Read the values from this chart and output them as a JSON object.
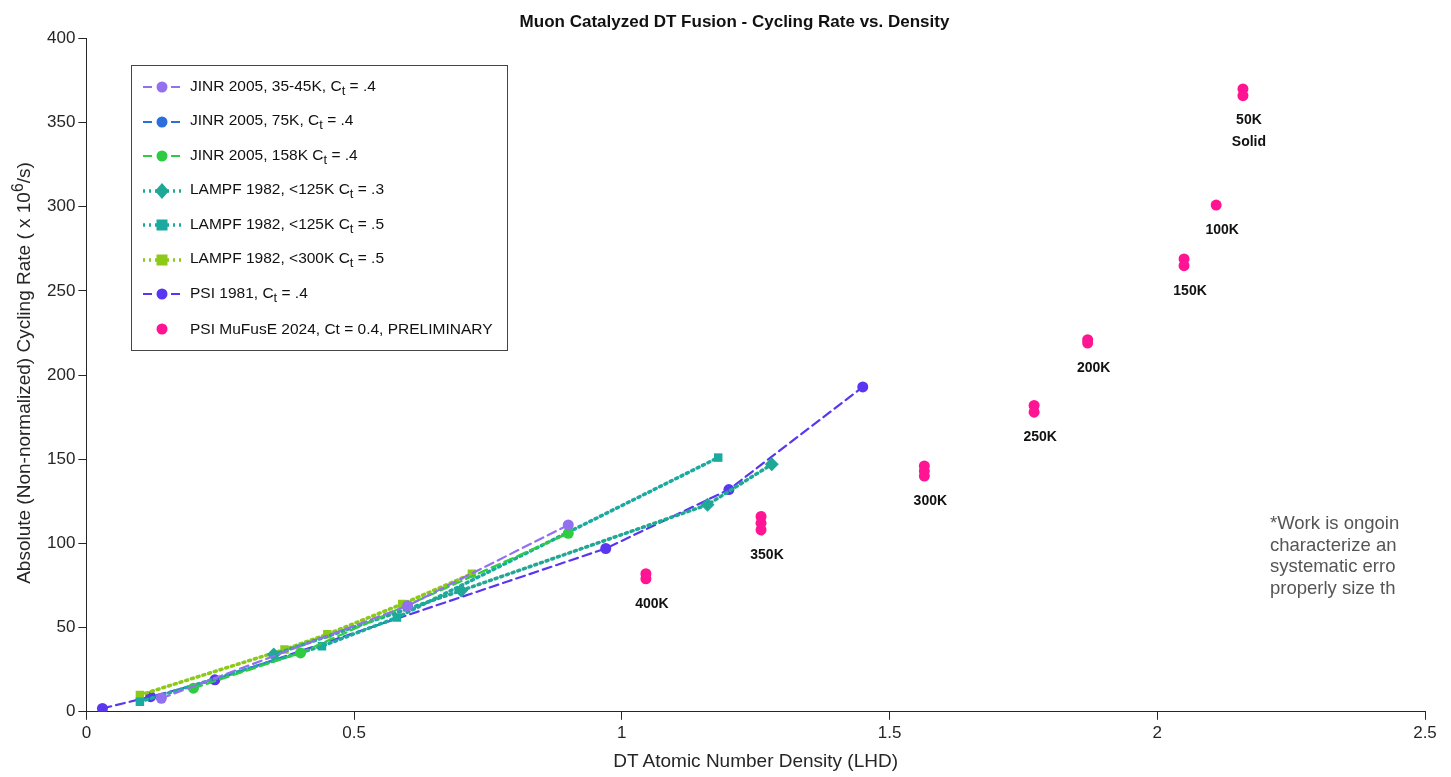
{
  "chart_data": {
    "type": "line",
    "title": "Muon Catalyzed DT Fusion - Cycling Rate vs. Density",
    "xlabel": "DT Atomic Number Density (LHD)",
    "ylabel": "Absolute (Non-normalized) Cycling Rate ( x 10$^{6}$/s)",
    "xlim": [
      0,
      2.5
    ],
    "xticks": [
      0,
      0.5,
      1,
      1.5,
      2,
      2.5
    ],
    "ylim": [
      0,
      400
    ],
    "yticks": [
      0,
      50,
      100,
      150,
      200,
      250,
      300,
      350,
      400
    ],
    "legend": "top left",
    "series": [
      {
        "name": "JINR 2005, 35-45K, C$_{t}$ =  .4",
        "color": "#9370f0",
        "line_style": "dashed",
        "marker": "circle",
        "x": [
          0.14,
          0.6,
          0.9
        ],
        "values": [
          8,
          63,
          111
        ]
      },
      {
        "name": "JINR 2005, 75K, C$_{t}$ =  .4",
        "color": "#2a6fdb",
        "line_style": "dashed",
        "marker": "circle"
      },
      {
        "name": "JINR 2005, 158K C$_{t}$ =  .4",
        "color": "#2ecc40",
        "line_style": "dashed",
        "marker": "circle",
        "x": [
          0.2,
          0.4,
          0.9
        ],
        "values": [
          14,
          35,
          106
        ]
      },
      {
        "name": "LAMPF 1982, <125K C$_{t}$ = .3",
        "color": "#1fa896",
        "line_style": "dotted",
        "marker": "diamond",
        "x": [
          0.35,
          0.7,
          1.16,
          1.28
        ],
        "values": [
          34,
          72,
          123,
          147
        ]
      },
      {
        "name": "LAMPF 1982, <125K C$_{t}$ =  .5",
        "color": "#1aaaa0",
        "line_style": "dotted",
        "marker": "square",
        "x": [
          0.1,
          0.44,
          0.58,
          1.18
        ],
        "values": [
          6,
          39,
          56,
          151
        ]
      },
      {
        "name": "LAMPF 1982, <300K C$_{t}$ =  .5",
        "color": "#8cc919",
        "line_style": "dotted",
        "marker": "square",
        "x": [
          0.1,
          0.37,
          0.45,
          0.59,
          0.72
        ],
        "values": [
          10,
          37,
          46,
          64,
          82
        ]
      },
      {
        "name": "PSI 1981, C$_{t}$ =  .4",
        "color": "#5b36f0",
        "line_style": "dashed",
        "marker": "circle",
        "x": [
          0.03,
          0.12,
          0.24,
          0.97,
          1.2,
          1.45
        ],
        "values": [
          2,
          9,
          19,
          97,
          132,
          193
        ]
      },
      {
        "name": "PSI MuFusE 2024, Ct = 0.4, PRELIMINARY",
        "type": "scatter",
        "color": "#ff1493",
        "marker": "circle",
        "x": [
          1.045,
          1.045,
          1.26,
          1.26,
          1.26,
          1.565,
          1.565,
          1.565,
          1.77,
          1.77,
          1.87,
          1.87,
          2.05,
          2.05,
          2.11,
          2.16,
          2.16
        ],
        "values": [
          82,
          79,
          116,
          112,
          108,
          146,
          143,
          140,
          182,
          178,
          221,
          219,
          269,
          265,
          301,
          370,
          366
        ]
      }
    ],
    "annotations": [
      {
        "text": "400K",
        "x": 1.045,
        "y": 79
      },
      {
        "text": "350K",
        "x": 1.26,
        "y": 108
      },
      {
        "text": "300K",
        "x": 1.565,
        "y": 140
      },
      {
        "text": "250K",
        "x": 1.77,
        "y": 178
      },
      {
        "text": "200K",
        "x": 1.87,
        "y": 219
      },
      {
        "text": "150K",
        "x": 2.05,
        "y": 265
      },
      {
        "text": "100K",
        "x": 2.11,
        "y": 301
      },
      {
        "text": "50K\nSolid",
        "x": 2.16,
        "y": 366
      },
      "*Work is ongoin\ncharacterize an\nsystematic erro\nproperly size th"
    ]
  }
}
